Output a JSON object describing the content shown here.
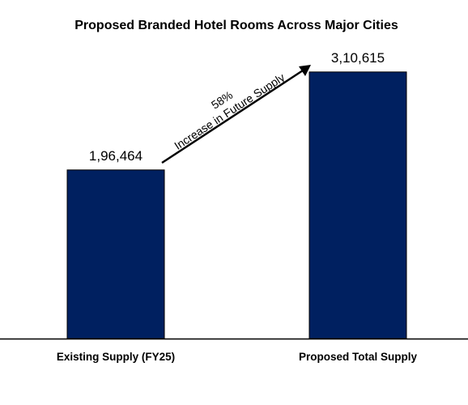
{
  "chart_data": {
    "type": "bar",
    "title": "Proposed Branded Hotel Rooms Across Major Cities",
    "categories": [
      "Existing Supply (FY25)",
      "Proposed Total Supply"
    ],
    "values": [
      196464,
      310615
    ],
    "value_labels": [
      "1,96,464",
      "3,10,615"
    ],
    "bar_color": "#002060",
    "ylim": [
      0,
      335000
    ],
    "grid": false,
    "legend": "none",
    "annotation": {
      "percent": "58%",
      "text": "Increase in Future Supply"
    }
  }
}
